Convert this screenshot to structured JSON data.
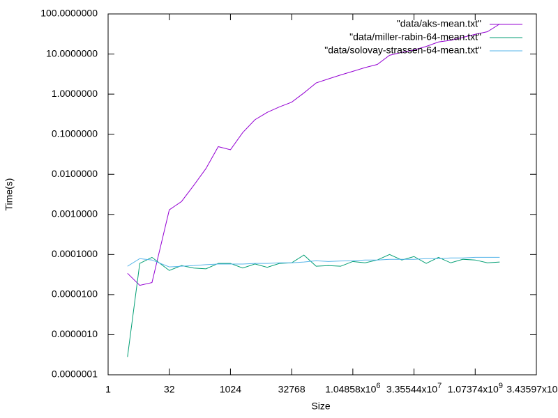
{
  "chart_data": {
    "type": "line",
    "xlabel": "Size",
    "ylabel": "Time(s)",
    "xscale": "log",
    "yscale": "log",
    "legend": "top right",
    "xlim": [
      1,
      34359738368
    ],
    "xticks": [
      1,
      32,
      1024,
      32768,
      {
        "value": 1048576,
        "label": "1.04858x10",
        "sup": "6"
      },
      {
        "value": 33554432,
        "label": "3.35544x10",
        "sup": "7"
      },
      {
        "value": 1073741824,
        "label": "1.07374x10",
        "sup": "9"
      },
      {
        "value": 34359738368,
        "label": "3.43597x10",
        "sup": "10"
      }
    ],
    "ylim": [
      1e-07,
      100
    ],
    "yticks": [
      {
        "value": 1e-07,
        "label": "0.0000001"
      },
      {
        "value": 1e-06,
        "label": "0.0000010"
      },
      {
        "value": 1e-05,
        "label": "0.0000100"
      },
      {
        "value": 0.0001,
        "label": "0.0001000"
      },
      {
        "value": 0.001,
        "label": "0.0010000"
      },
      {
        "value": 0.01,
        "label": "0.0100000"
      },
      {
        "value": 0.1,
        "label": "0.1000000"
      },
      {
        "value": 1,
        "label": "1.0000000"
      },
      {
        "value": 10,
        "label": "10.0000000"
      },
      {
        "value": 100,
        "label": "100.0000000"
      }
    ],
    "x": [
      3,
      6,
      12,
      32,
      64,
      128,
      256,
      512,
      1024,
      2048,
      4096,
      8192,
      16384,
      32768,
      65536,
      131072,
      262144,
      524288,
      1048576,
      2097152,
      4194304,
      8388608,
      16777216,
      33554432,
      67108864,
      134217728,
      268435456,
      536870912,
      1073741824,
      2147483648,
      4294967296
    ],
    "series": [
      {
        "name": "\"data/aks-mean.txt\"",
        "color": "#9400d3",
        "values": [
          3.4e-05,
          1.7e-05,
          2e-05,
          0.0013,
          0.0021,
          0.0053,
          0.014,
          0.049,
          0.041,
          0.11,
          0.23,
          0.35,
          0.48,
          0.63,
          1.07,
          1.9,
          2.4,
          3.0,
          3.7,
          4.6,
          5.5,
          9.3,
          11,
          12.6,
          15.5,
          20,
          22,
          26,
          31,
          36,
          56
        ]
      },
      {
        "name": "\"data/miller-rabin-64-mean.txt\"",
        "color": "#009e73",
        "values": [
          2.8e-07,
          6e-05,
          8.5e-05,
          4e-05,
          5.3e-05,
          4.6e-05,
          4.4e-05,
          6e-05,
          6e-05,
          4.6e-05,
          5.8e-05,
          4.8e-05,
          6e-05,
          6.2e-05,
          9.7e-05,
          5.1e-05,
          5.3e-05,
          5.1e-05,
          6.7e-05,
          6.2e-05,
          7.3e-05,
          0.0001,
          7.3e-05,
          8.9e-05,
          6e-05,
          8.5e-05,
          6.2e-05,
          7.6e-05,
          7.3e-05,
          6.2e-05,
          6.5e-05
        ]
      },
      {
        "name": "\"data/solovay-strassen-64-mean.txt\"",
        "color": "#56b4e9",
        "values": [
          5.1e-05,
          7.9e-05,
          7.3e-05,
          4.9e-05,
          5.1e-05,
          5.3e-05,
          5.6e-05,
          5.8e-05,
          5.8e-05,
          5.8e-05,
          6e-05,
          6e-05,
          6.2e-05,
          6.2e-05,
          6.5e-05,
          7e-05,
          6.7e-05,
          6.9e-05,
          7e-05,
          7.3e-05,
          7.3e-05,
          7.6e-05,
          7.6e-05,
          7.6e-05,
          7.9e-05,
          7.9e-05,
          8.2e-05,
          8.2e-05,
          8.5e-05,
          8.5e-05,
          8.5e-05
        ]
      }
    ]
  }
}
